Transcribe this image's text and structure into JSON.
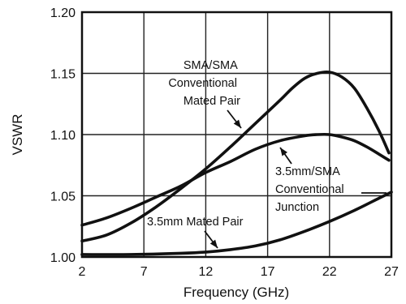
{
  "chart_data": {
    "type": "line",
    "title": "",
    "xlabel": "Frequency (GHz)",
    "ylabel": "VSWR",
    "xlim": [
      2,
      27
    ],
    "ylim": [
      1.0,
      1.2
    ],
    "x_ticks": [
      "2",
      "7",
      "12",
      "17",
      "22",
      "27"
    ],
    "y_ticks": [
      "1.00",
      "1.05",
      "1.10",
      "1.15",
      "1.20"
    ],
    "grid": true,
    "series": [
      {
        "name": "SMA/SMA Conventional Mated Pair",
        "x": [
          2,
          4,
          6,
          8,
          10,
          12,
          14,
          16,
          18,
          19,
          20,
          21,
          22,
          23,
          24,
          25,
          26,
          26.8
        ],
        "y": [
          1.013,
          1.018,
          1.028,
          1.041,
          1.056,
          1.072,
          1.09,
          1.109,
          1.128,
          1.138,
          1.146,
          1.15,
          1.151,
          1.147,
          1.138,
          1.122,
          1.103,
          1.085
        ]
      },
      {
        "name": "3.5mm/SMA Conventional Junction",
        "x": [
          2,
          4,
          6,
          8,
          10,
          12,
          14,
          16,
          18,
          20,
          21,
          22,
          23,
          24,
          25,
          26,
          26.8
        ],
        "y": [
          1.026,
          1.032,
          1.04,
          1.049,
          1.058,
          1.069,
          1.078,
          1.088,
          1.095,
          1.099,
          1.1,
          1.1,
          1.098,
          1.095,
          1.09,
          1.084,
          1.079
        ]
      },
      {
        "name": "3.5mm Mated Pair",
        "x": [
          2,
          6,
          10,
          12,
          14,
          16,
          18,
          20,
          22,
          24,
          26,
          27
        ],
        "y": [
          1.002,
          1.002,
          1.003,
          1.004,
          1.006,
          1.009,
          1.014,
          1.021,
          1.029,
          1.038,
          1.048,
          1.053
        ]
      }
    ],
    "annotations": [
      {
        "lines": [
          "SMA/SMA",
          "Conventional",
          "Mated Pair"
        ]
      },
      {
        "lines": [
          "3.5mm/SMA",
          "Conventional",
          "Junction"
        ]
      },
      {
        "lines": [
          "3.5mm Mated Pair"
        ]
      }
    ]
  }
}
